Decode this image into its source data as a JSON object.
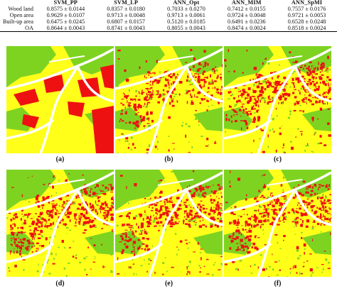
{
  "table": {
    "columns": [
      "",
      "SVM_PP",
      "SVM_LP",
      "ANN_Opt",
      "ANN_MIM",
      "ANN_SpMI"
    ],
    "rows": [
      {
        "label": "Wood land",
        "values": [
          "0.8575 ± 0.0144",
          "0.8357 ± 0.0180",
          "0.7033 ± 0.0270",
          "0.7412 ± 0.0155",
          "0.7557 ± 0.0176"
        ]
      },
      {
        "label": "Open area",
        "values": [
          "0.9629 ± 0.0107",
          "0.9713 ± 0.0048",
          "0.9713 ± 0.0061",
          "0.9724 ± 0.0048",
          "0.9721 ± 0.0053"
        ]
      },
      {
        "label": "Built-up area",
        "values": [
          "0.6475 ± 0.0245",
          "0.6807 ± 0.0157",
          "0.5120 ± 0.0185",
          "0.6491 ± 0.0236",
          "0.6528 ± 0.0248"
        ]
      },
      {
        "label": "OA",
        "values": [
          "0.8644 ± 0.0043",
          "0.8741 ± 0.0043",
          "0.8055 ± 0.0043",
          "0.8474 ± 0.0024",
          "0.8518 ± 0.0024"
        ]
      }
    ]
  },
  "panels": [
    {
      "label": "(a)",
      "variant": "reference"
    },
    {
      "label": "(b)",
      "variant": "svm"
    },
    {
      "label": "(c)",
      "variant": "ann"
    },
    {
      "label": "(d)",
      "variant": "ann2"
    },
    {
      "label": "(e)",
      "variant": "ann3"
    },
    {
      "label": "(f)",
      "variant": "ann4"
    }
  ],
  "colors": {
    "open_area": "#ffff1a",
    "wood_land": "#7ed321",
    "built_up": "#ee1111",
    "road": "#ffffff"
  }
}
